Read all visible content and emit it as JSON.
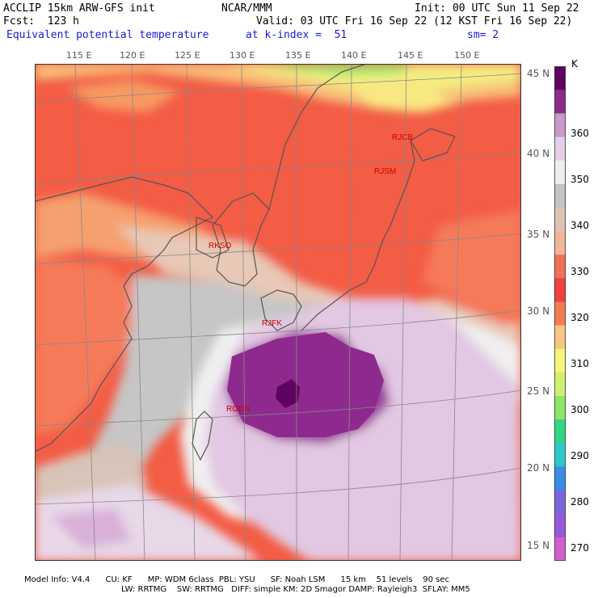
{
  "header": {
    "model": "ACCLIP 15km ARW-GFS init",
    "org": "NCAR/MMM",
    "init": "Init: 00 UTC Sun 11 Sep 22",
    "fcst": "Fcst:  123 h",
    "valid": "Valid: 03 UTC Fri 16 Sep 22 (12 KST Fri 16 Sep 22)",
    "field": "Equivalent potential temperature",
    "level": "at k-index =  51",
    "smooth": "sm= 2"
  },
  "map": {
    "lon_labels": [
      "115 E",
      "120 E",
      "125 E",
      "130 E",
      "135 E",
      "140 E",
      "145 E",
      "150 E"
    ],
    "lat_labels": [
      "45 N",
      "40 N",
      "35 N",
      "30 N",
      "25 N",
      "20 N",
      "15 N"
    ],
    "stations": [
      "RJCB",
      "RJSM",
      "RKSO",
      "RJFK",
      "RODN"
    ],
    "typhoon_core_color": "#7a0a7a"
  },
  "colorbar": {
    "unit": "K",
    "labels": [
      "360",
      "350",
      "340",
      "330",
      "320",
      "310",
      "300",
      "290",
      "280",
      "270"
    ],
    "colors_top_to_bottom": [
      "#5e045e",
      "#8e2a8e",
      "#c89ac8",
      "#e6cfe6",
      "#eeeeee",
      "#c4c4c4",
      "#dcc4b4",
      "#f4b49c",
      "#f07058",
      "#f04040",
      "#f47c52",
      "#f8c882",
      "#f4f480",
      "#d2f070",
      "#8ce868",
      "#30d884",
      "#2cc8c8",
      "#3c8ce6",
      "#7868e0",
      "#9858d8",
      "#d060d0"
    ]
  },
  "footer": {
    "line1": "Model Info: V4.4      CU: KF      MP: WDM 6class  PBL: YSU      SF: Noah LSM      15 km    51 levels    90 sec",
    "line2": "LW: RRTMG    SW: RRTMG   DIFF: simple KM: 2D Smagor DAMP: Rayleigh3  SFLAY: MM5"
  }
}
